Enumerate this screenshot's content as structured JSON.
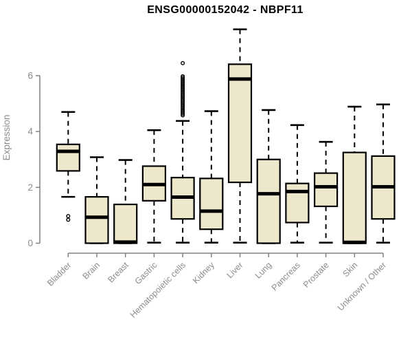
{
  "title": "ENSG00000152042 - NBPF11",
  "chart_data": {
    "type": "boxplot",
    "title": "ENSG00000152042 - NBPF11",
    "ylabel": "Expression",
    "xlabel": "",
    "yticks": [
      0,
      2,
      4,
      6
    ],
    "ylim": [
      0,
      7.7
    ],
    "grid": false,
    "legend": "none",
    "box_fill": "#EDE7CC",
    "box_stroke": "#000000",
    "axis_color": "#808080",
    "label_color": "#8C8C8C",
    "categories": [
      "Bladder",
      "Brain",
      "Breast",
      "Gastric",
      "Hematopoietic cells",
      "Kidney",
      "Liver",
      "Lung",
      "Pancreas",
      "Prostate",
      "Skin",
      "Unknown / Other"
    ],
    "series": [
      {
        "name": "Bladder",
        "min": 1.66,
        "q1": 2.59,
        "median": 3.29,
        "q3": 3.54,
        "max": 4.7,
        "outliers": [
          0.97,
          0.84
        ]
      },
      {
        "name": "Brain",
        "min": 0.0,
        "q1": 0.0,
        "median": 0.93,
        "q3": 1.66,
        "max": 3.08,
        "outliers": []
      },
      {
        "name": "Breast",
        "min": 0.0,
        "q1": 0.0,
        "median": 0.04,
        "q3": 1.39,
        "max": 2.98,
        "outliers": []
      },
      {
        "name": "Gastric",
        "min": 0.02,
        "q1": 1.52,
        "median": 2.1,
        "q3": 2.76,
        "max": 4.05,
        "outliers": []
      },
      {
        "name": "Hematopoietic cells",
        "min": 0.02,
        "q1": 0.87,
        "median": 1.65,
        "q3": 2.35,
        "max": 4.38,
        "outliers": [
          6.45,
          5.98,
          5.93,
          5.88,
          5.83,
          5.78,
          5.73,
          5.68,
          5.63,
          5.58,
          5.53,
          5.48,
          5.43,
          5.38,
          5.33,
          5.28,
          5.23,
          5.18,
          5.13,
          5.08,
          5.03,
          4.98,
          4.93,
          4.88,
          4.83,
          4.78,
          4.73,
          4.68,
          4.63,
          4.58
        ]
      },
      {
        "name": "Kidney",
        "min": 0.02,
        "q1": 0.5,
        "median": 1.15,
        "q3": 2.32,
        "max": 4.73,
        "outliers": []
      },
      {
        "name": "Liver",
        "min": 0.02,
        "q1": 2.18,
        "median": 5.88,
        "q3": 6.41,
        "max": 7.66,
        "outliers": []
      },
      {
        "name": "Lung",
        "min": 0.0,
        "q1": 0.0,
        "median": 1.77,
        "q3": 3.0,
        "max": 4.77,
        "outliers": []
      },
      {
        "name": "Pancreas",
        "min": 0.02,
        "q1": 0.74,
        "median": 1.85,
        "q3": 2.14,
        "max": 4.23,
        "outliers": []
      },
      {
        "name": "Prostate",
        "min": 0.02,
        "q1": 1.32,
        "median": 2.02,
        "q3": 2.51,
        "max": 3.63,
        "outliers": []
      },
      {
        "name": "Skin",
        "min": 0.0,
        "q1": 0.0,
        "median": 0.03,
        "q3": 3.25,
        "max": 4.89,
        "outliers": []
      },
      {
        "name": "Unknown / Other",
        "min": 0.02,
        "q1": 0.87,
        "median": 2.02,
        "q3": 3.12,
        "max": 4.97,
        "outliers": []
      }
    ]
  }
}
